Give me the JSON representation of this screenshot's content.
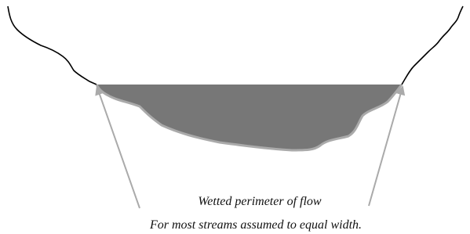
{
  "diagram": {
    "captions": [
      "Wetted perimeter of flow",
      "For most streams assumed to equal width."
    ]
  }
}
